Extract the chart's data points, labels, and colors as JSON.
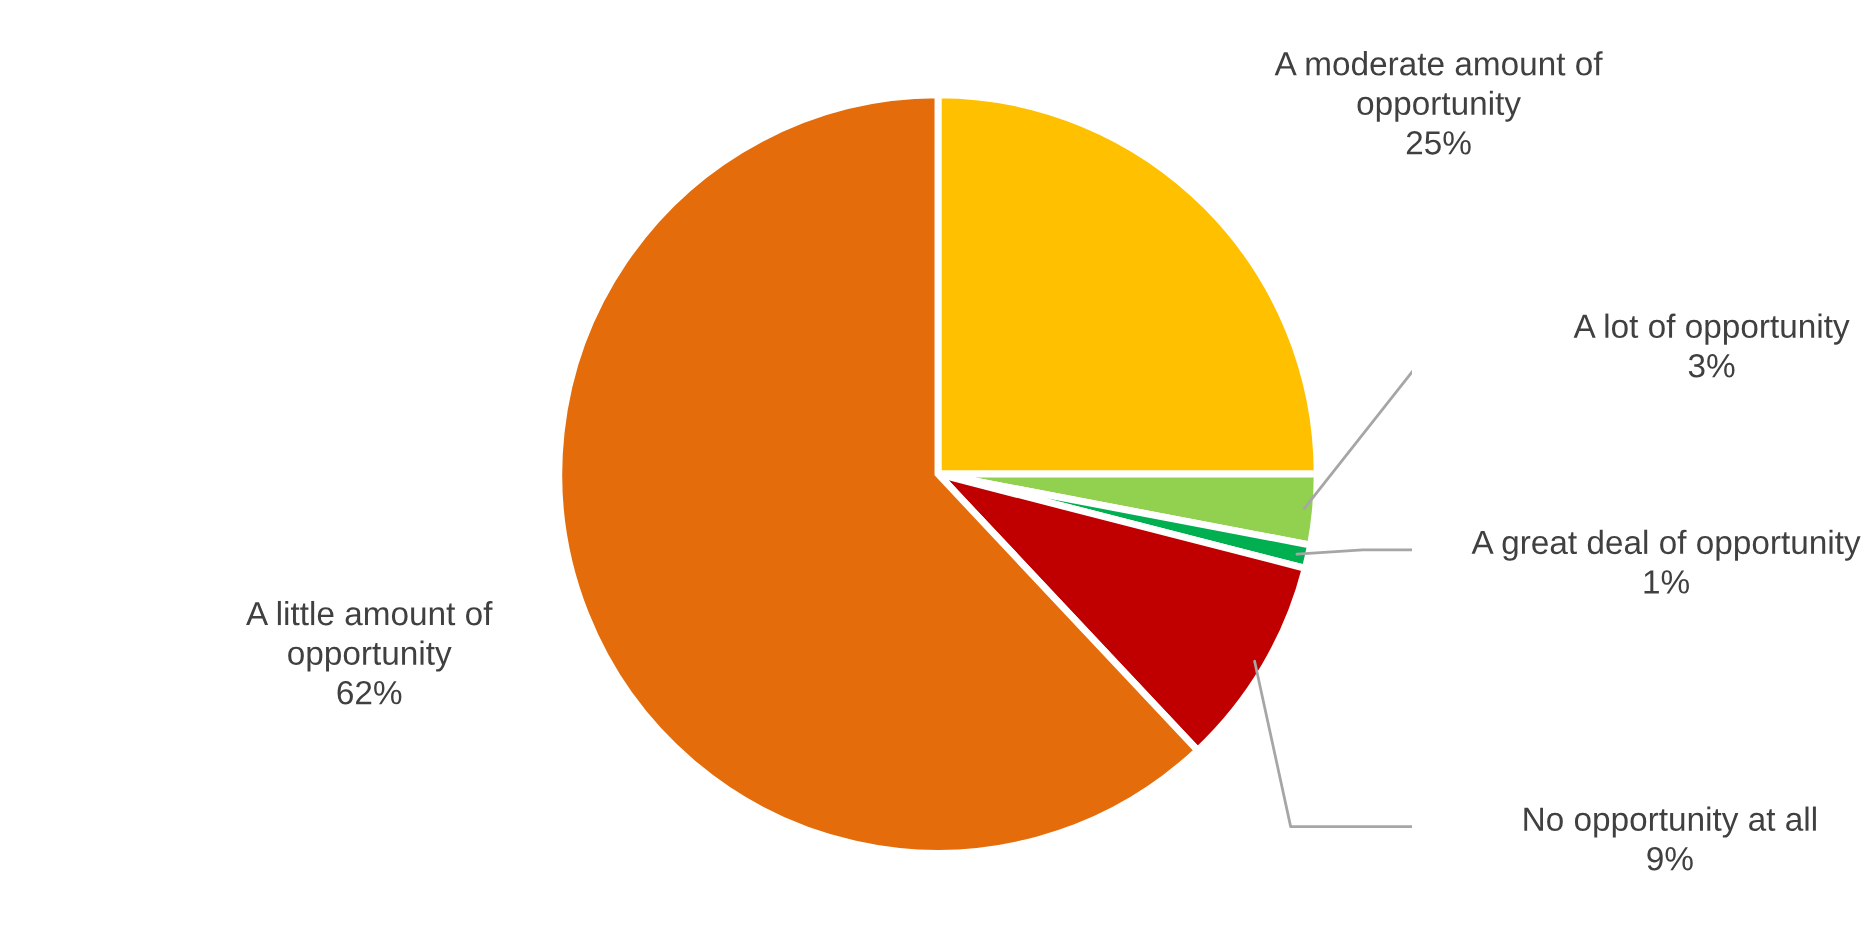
{
  "chart_data": {
    "type": "pie",
    "categories": [
      "A moderate amount of opportunity",
      "A lot of opportunity",
      "A great deal of opportunity",
      "No opportunity at all",
      "A little amount of opportunity"
    ],
    "values": [
      25,
      3,
      1,
      9,
      62
    ],
    "colors": [
      "#ffc000",
      "#92d050",
      "#00b050",
      "#c00000",
      "#e46c0a"
    ],
    "value_labels": [
      "25%",
      "3%",
      "1%",
      "9%",
      "62%"
    ],
    "legend": false
  }
}
